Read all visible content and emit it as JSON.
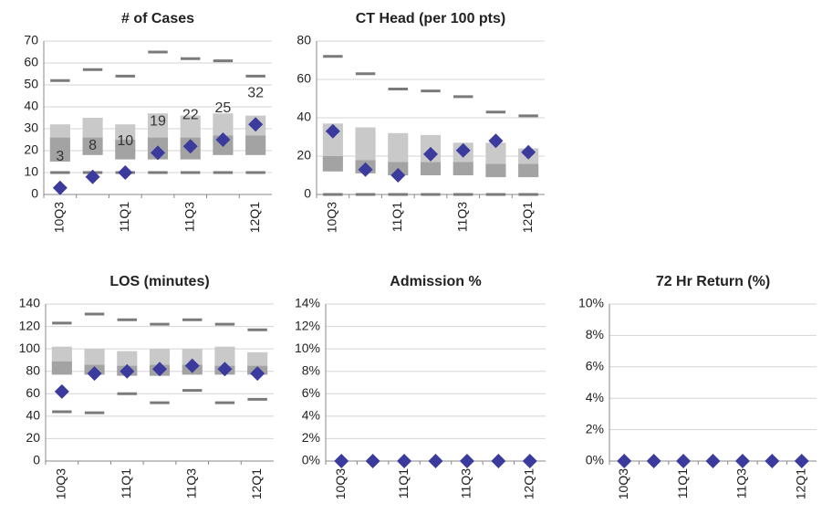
{
  "chart_data": [
    {
      "type": "box",
      "title": "# of Cases",
      "categories": [
        "10Q3",
        null,
        "11Q1",
        null,
        "11Q3",
        null,
        "12Q1"
      ],
      "values": [
        3,
        8,
        10,
        19,
        22,
        25,
        32
      ],
      "q1": [
        15,
        18,
        16,
        16,
        16,
        18,
        18
      ],
      "median": [
        26,
        26,
        25,
        26,
        26,
        27,
        27
      ],
      "q3": [
        32,
        35,
        32,
        37,
        36,
        37,
        36
      ],
      "min": [
        10,
        10,
        10,
        10,
        10,
        10,
        10
      ],
      "max": [
        52,
        57,
        54,
        65,
        62,
        61,
        54
      ],
      "ylim": [
        0,
        70
      ],
      "yticks": [
        0,
        10,
        20,
        30,
        40,
        50,
        60,
        70
      ],
      "grid": true,
      "color": "#3b3b9e"
    },
    {
      "type": "box",
      "title": "CT Head (per 100 pts)",
      "categories": [
        "10Q3",
        null,
        "11Q1",
        null,
        "11Q3",
        null,
        "12Q1"
      ],
      "values": [
        33,
        13,
        10,
        21,
        23,
        28,
        22
      ],
      "q1": [
        12,
        11,
        10,
        10,
        10,
        9,
        9
      ],
      "median": [
        20,
        18,
        17,
        17,
        17,
        16,
        16
      ],
      "q3": [
        37,
        35,
        32,
        31,
        27,
        27,
        24
      ],
      "min": [
        0,
        0,
        0,
        0,
        0,
        0,
        0
      ],
      "max": [
        72,
        63,
        55,
        54,
        51,
        43,
        41
      ],
      "ylim": [
        0,
        80
      ],
      "yticks": [
        0,
        20,
        40,
        60,
        80
      ],
      "grid": true,
      "color": "#3b3b9e"
    },
    {
      "type": "box",
      "title": "LOS (minutes)",
      "categories": [
        "10Q3",
        null,
        "11Q1",
        null,
        "11Q3",
        null,
        "12Q1"
      ],
      "values": [
        62,
        78,
        80,
        82,
        85,
        82,
        78
      ],
      "q1": [
        77,
        77,
        76,
        76,
        77,
        77,
        77
      ],
      "median": [
        89,
        86,
        85,
        86,
        86,
        85,
        85
      ],
      "q3": [
        102,
        100,
        98,
        100,
        100,
        102,
        97
      ],
      "min": [
        44,
        43,
        60,
        52,
        63,
        52,
        55
      ],
      "max": [
        123,
        131,
        126,
        122,
        126,
        122,
        117
      ],
      "ylim": [
        0,
        140
      ],
      "yticks": [
        0,
        20,
        40,
        60,
        80,
        100,
        120,
        140
      ],
      "grid": true,
      "color": "#3b3b9e"
    },
    {
      "type": "scatter",
      "title": "Admission %",
      "categories": [
        "10Q3",
        null,
        "11Q1",
        null,
        "11Q3",
        null,
        "12Q1"
      ],
      "values": [
        0,
        0,
        0,
        0,
        0,
        0,
        0
      ],
      "ylim": [
        0,
        14
      ],
      "yticks": [
        {
          "value": 0,
          "label": "0%"
        },
        {
          "value": 2,
          "label": "2%"
        },
        {
          "value": 4,
          "label": "4%"
        },
        {
          "value": 6,
          "label": "6%"
        },
        {
          "value": 8,
          "label": "8%"
        },
        {
          "value": 10,
          "label": "10%"
        },
        {
          "value": 12,
          "label": "12%"
        },
        {
          "value": 14,
          "label": "14%"
        }
      ],
      "grid": true,
      "color": "#3b3b9e"
    },
    {
      "type": "scatter",
      "title": "72 Hr Return (%)",
      "categories": [
        "10Q3",
        null,
        "11Q1",
        null,
        "11Q3",
        null,
        "12Q1"
      ],
      "values": [
        0,
        0,
        0,
        0,
        0,
        0,
        0
      ],
      "ylim": [
        0,
        10
      ],
      "yticks": [
        {
          "value": 0,
          "label": "0%"
        },
        {
          "value": 2,
          "label": "2%"
        },
        {
          "value": 4,
          "label": "4%"
        },
        {
          "value": 6,
          "label": "6%"
        },
        {
          "value": 8,
          "label": "8%"
        },
        {
          "value": 10,
          "label": "10%"
        }
      ],
      "grid": true,
      "color": "#3b3b9e"
    }
  ]
}
